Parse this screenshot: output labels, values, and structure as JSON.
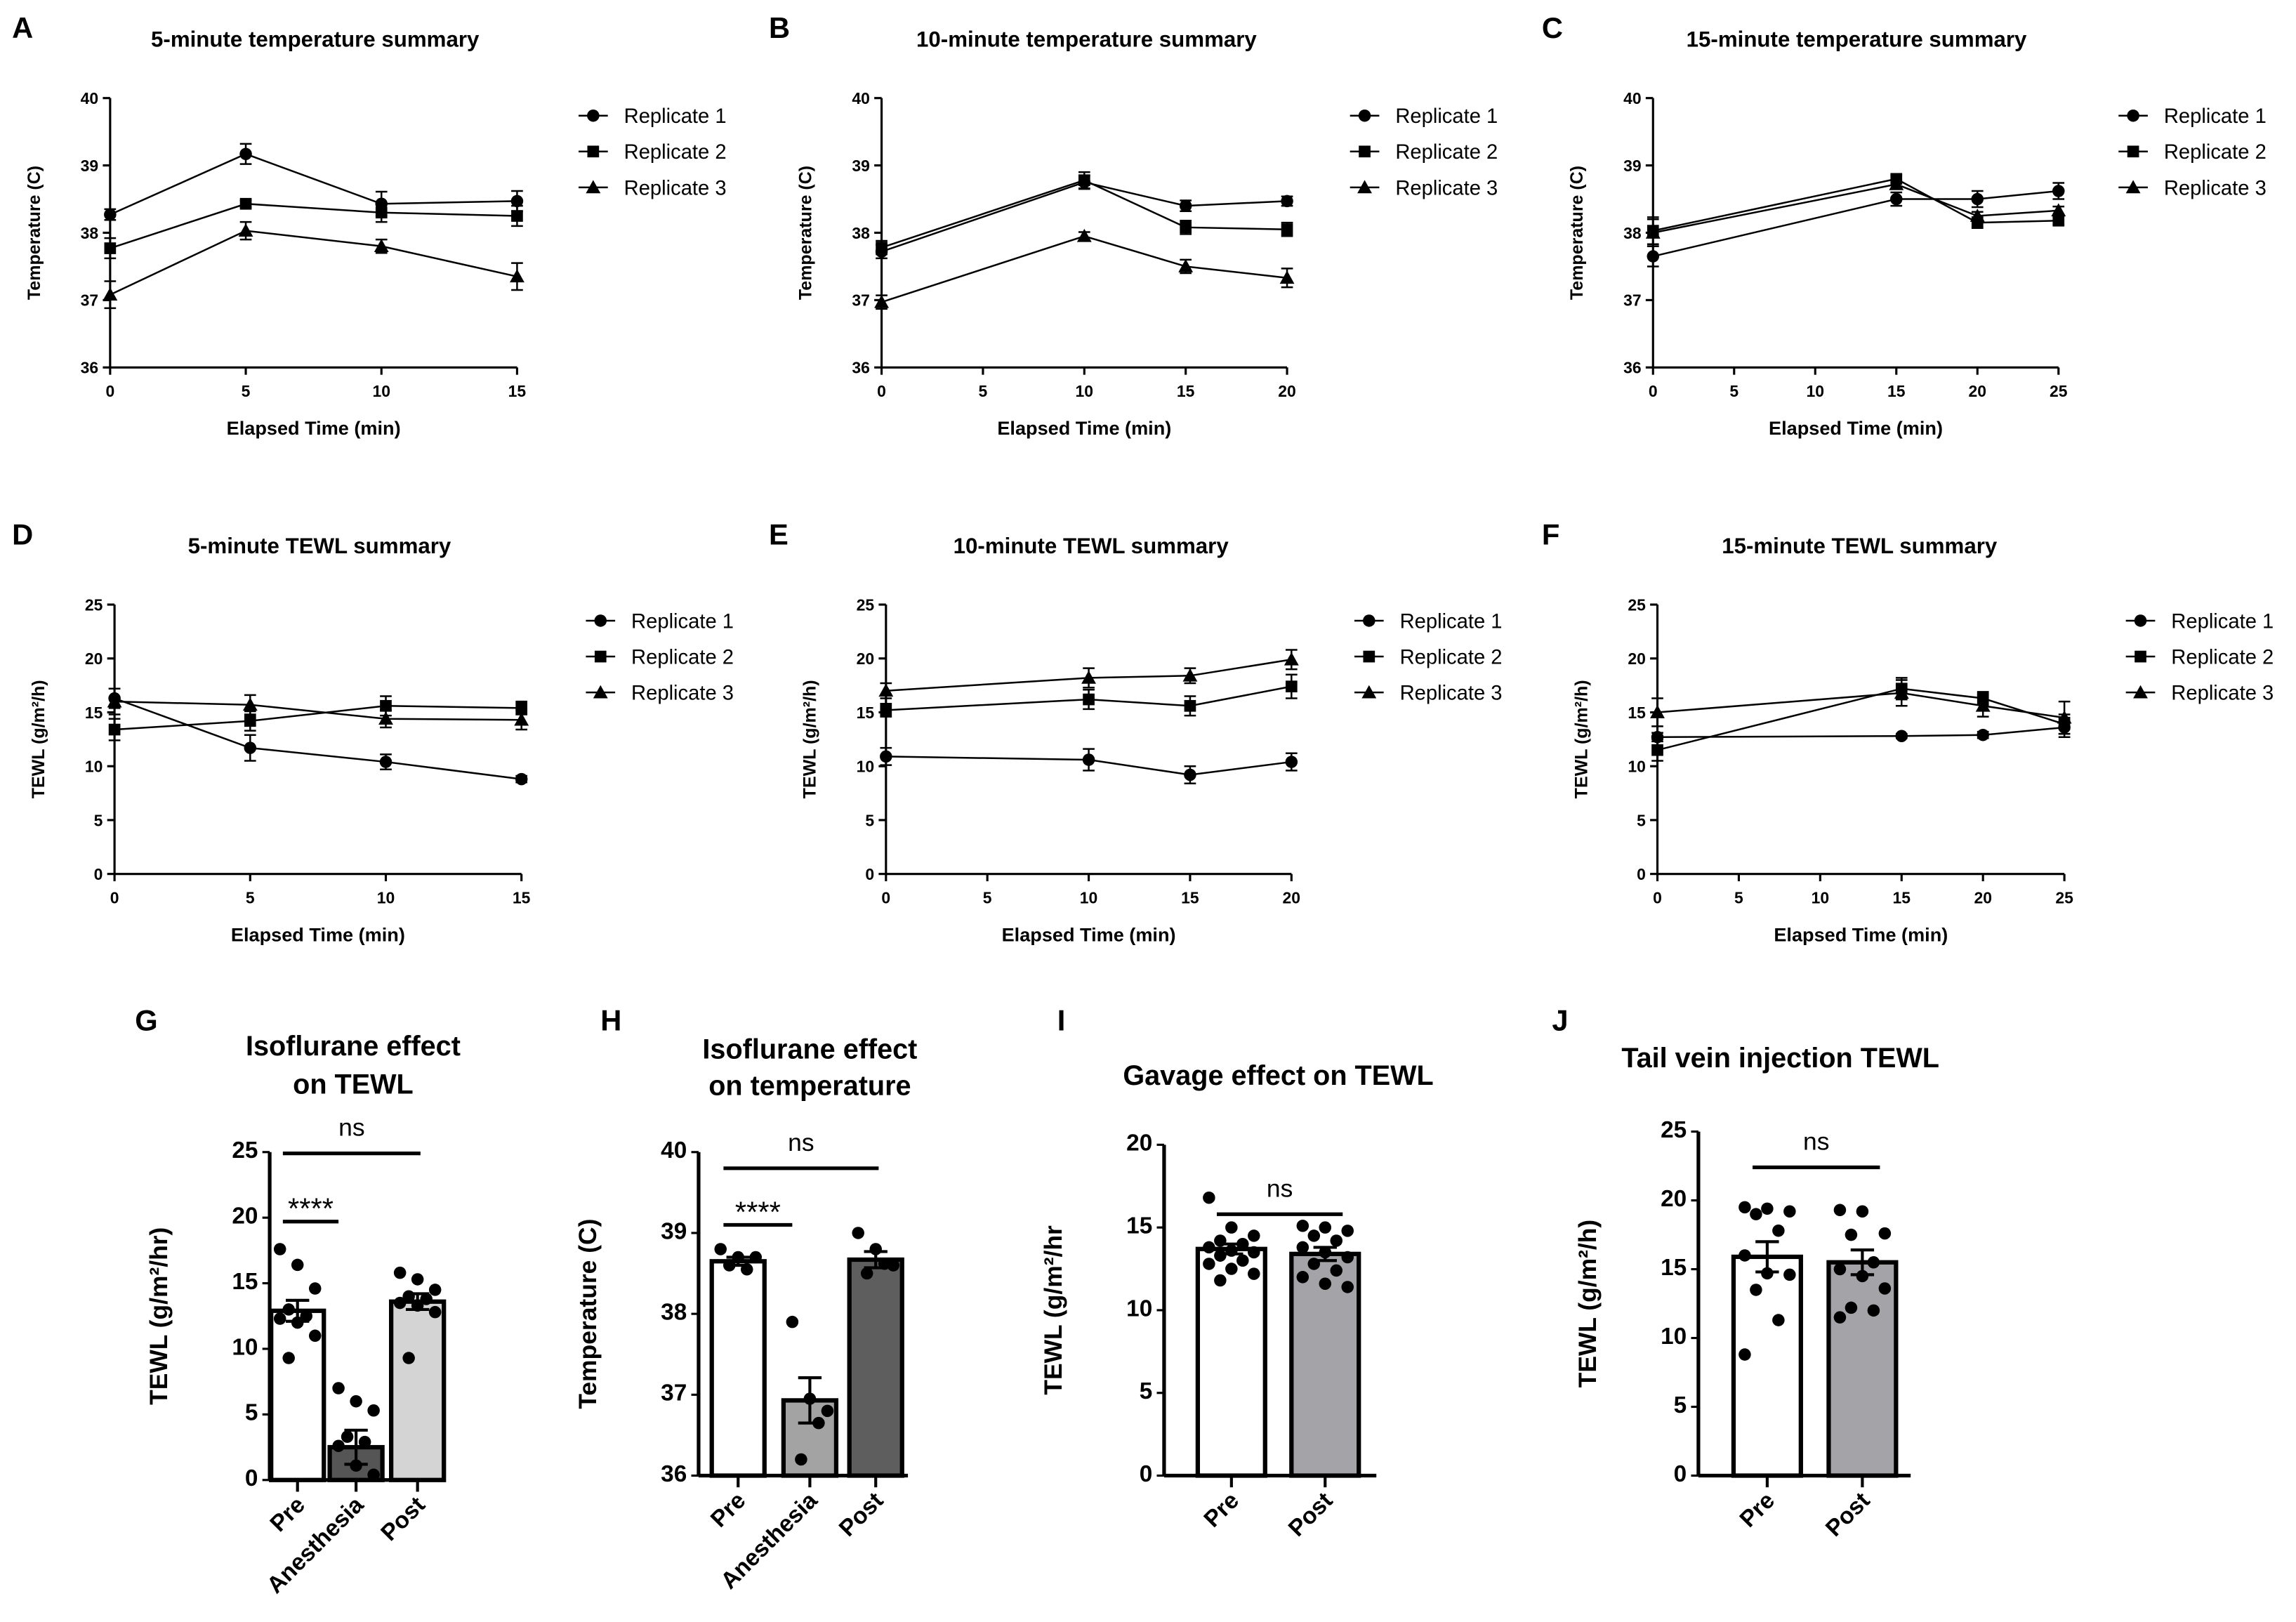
{
  "chart_data": [
    {
      "id": "A",
      "type": "line",
      "panel_label": "A",
      "title": "5-minute temperature summary",
      "xlabel": "Elapsed Time (min)",
      "ylabel": "Temperature (C)",
      "xlim": [
        0,
        15
      ],
      "ylim": [
        36,
        40
      ],
      "xticks": [
        0,
        5,
        10,
        15
      ],
      "yticks": [
        36,
        37,
        38,
        39,
        40
      ],
      "legend": "right",
      "x": [
        0,
        5,
        10,
        15
      ],
      "series": [
        {
          "name": "Replicate 1",
          "marker": "circle",
          "values": [
            38.27,
            39.17,
            38.43,
            38.47
          ],
          "err": [
            0.08,
            0.15,
            0.18,
            0.15
          ]
        },
        {
          "name": "Replicate 2",
          "marker": "square",
          "values": [
            37.77,
            38.43,
            38.3,
            38.25
          ],
          "err": [
            0.15,
            0.05,
            0.14,
            0.15
          ]
        },
        {
          "name": "Replicate 3",
          "marker": "triangle",
          "values": [
            37.08,
            38.03,
            37.8,
            37.35
          ],
          "err": [
            0.2,
            0.13,
            0.1,
            0.2
          ]
        }
      ]
    },
    {
      "id": "B",
      "type": "line",
      "panel_label": "B",
      "title": "10-minute temperature summary",
      "xlabel": "Elapsed Time (min)",
      "ylabel": "Temperature (C)",
      "xlim": [
        0,
        20
      ],
      "ylim": [
        36,
        40
      ],
      "xticks": [
        0,
        5,
        10,
        15,
        20
      ],
      "yticks": [
        36,
        37,
        38,
        39,
        40
      ],
      "legend": "right",
      "x": [
        0,
        10,
        15,
        20
      ],
      "series": [
        {
          "name": "Replicate 1",
          "marker": "circle",
          "values": [
            37.72,
            38.75,
            38.4,
            38.47
          ],
          "err": [
            0.1,
            0.1,
            0.08,
            0.07
          ]
        },
        {
          "name": "Replicate 2",
          "marker": "square",
          "values": [
            37.78,
            38.78,
            38.08,
            38.05
          ],
          "err": [
            0.1,
            0.12,
            0.1,
            0.1
          ]
        },
        {
          "name": "Replicate 3",
          "marker": "triangle",
          "values": [
            36.97,
            37.95,
            37.5,
            37.33
          ],
          "err": [
            0.1,
            0.06,
            0.1,
            0.14
          ]
        }
      ]
    },
    {
      "id": "C",
      "type": "line",
      "panel_label": "C",
      "title": "15-minute temperature summary",
      "xlabel": "Elapsed Time (min)",
      "ylabel": "Temperature (C)",
      "xlim": [
        0,
        25
      ],
      "ylim": [
        36,
        40
      ],
      "xticks": [
        0,
        5,
        10,
        15,
        20,
        25
      ],
      "yticks": [
        36,
        37,
        38,
        39,
        40
      ],
      "legend": "right",
      "x": [
        0,
        15,
        20,
        25
      ],
      "series": [
        {
          "name": "Replicate 1",
          "marker": "circle",
          "values": [
            37.65,
            38.5,
            38.5,
            38.62
          ],
          "err": [
            0.15,
            0.1,
            0.12,
            0.12
          ]
        },
        {
          "name": "Replicate 2",
          "marker": "square",
          "values": [
            38.03,
            38.8,
            38.15,
            38.18
          ],
          "err": [
            0.2,
            0.06,
            0.08,
            0.06
          ]
        },
        {
          "name": "Replicate 3",
          "marker": "triangle",
          "values": [
            38.0,
            38.72,
            38.25,
            38.33
          ],
          "err": [
            0.2,
            0.06,
            0.06,
            0.06
          ]
        }
      ]
    },
    {
      "id": "D",
      "type": "line",
      "panel_label": "D",
      "title": "5-minute TEWL summary",
      "xlabel": "Elapsed Time (min)",
      "ylabel": "TEWL (g/m²/h)",
      "xlim": [
        0,
        15
      ],
      "ylim": [
        0,
        25
      ],
      "xticks": [
        0,
        5,
        10,
        15
      ],
      "yticks": [
        0,
        5,
        10,
        15,
        20,
        25
      ],
      "legend": "right",
      "x": [
        0,
        5,
        10,
        15
      ],
      "series": [
        {
          "name": "Replicate 1",
          "marker": "circle",
          "values": [
            16.3,
            11.7,
            10.4,
            8.8
          ],
          "err": [
            0.9,
            1.2,
            0.7,
            0.3
          ]
        },
        {
          "name": "Replicate 2",
          "marker": "square",
          "values": [
            13.4,
            14.2,
            15.6,
            15.4
          ],
          "err": [
            1.0,
            0.9,
            0.9,
            0.6
          ]
        },
        {
          "name": "Replicate 3",
          "marker": "triangle",
          "values": [
            16.0,
            15.7,
            14.4,
            14.3
          ],
          "err": [
            1.2,
            0.9,
            0.8,
            0.9
          ]
        }
      ]
    },
    {
      "id": "E",
      "type": "line",
      "panel_label": "E",
      "title": "10-minute TEWL summary",
      "xlabel": "Elapsed Time (min)",
      "ylabel": "TEWL (g/m²/h)",
      "xlim": [
        0,
        20
      ],
      "ylim": [
        0,
        25
      ],
      "xticks": [
        0,
        5,
        10,
        15,
        20
      ],
      "yticks": [
        0,
        5,
        10,
        15,
        20,
        25
      ],
      "legend": "right",
      "x": [
        0,
        10,
        15,
        20
      ],
      "series": [
        {
          "name": "Replicate 1",
          "marker": "circle",
          "values": [
            10.9,
            10.6,
            9.2,
            10.4
          ],
          "err": [
            0.8,
            1.0,
            0.8,
            0.8
          ]
        },
        {
          "name": "Replicate 2",
          "marker": "square",
          "values": [
            15.2,
            16.2,
            15.6,
            17.4
          ],
          "err": [
            0.6,
            0.9,
            0.9,
            1.1
          ]
        },
        {
          "name": "Replicate 3",
          "marker": "triangle",
          "values": [
            17.0,
            18.2,
            18.4,
            19.9
          ],
          "err": [
            0.7,
            0.9,
            0.7,
            0.9
          ]
        }
      ]
    },
    {
      "id": "F",
      "type": "line",
      "panel_label": "F",
      "title": "15-minute TEWL summary",
      "xlabel": "Elapsed Time (min)",
      "ylabel": "TEWL (g/m²/h)",
      "xlim": [
        0,
        25
      ],
      "ylim": [
        0,
        25
      ],
      "xticks": [
        0,
        5,
        10,
        15,
        20,
        25
      ],
      "yticks": [
        0,
        5,
        10,
        15,
        20,
        25
      ],
      "legend": "right",
      "x": [
        0,
        15,
        20,
        25
      ],
      "series": [
        {
          "name": "Replicate 1",
          "marker": "circle",
          "values": [
            12.7,
            12.8,
            12.9,
            13.6
          ],
          "err": [
            0.4,
            0.2,
            0.3,
            0.9
          ]
        },
        {
          "name": "Replicate 2",
          "marker": "square",
          "values": [
            11.5,
            17.2,
            16.3,
            13.9
          ],
          "err": [
            1.0,
            1.0,
            0.6,
            0.9
          ]
        },
        {
          "name": "Replicate 3",
          "marker": "triangle",
          "values": [
            15.0,
            16.8,
            15.6,
            14.5
          ],
          "err": [
            1.3,
            1.2,
            1.0,
            1.5
          ]
        }
      ]
    },
    {
      "id": "G",
      "type": "bar",
      "panel_label": "G",
      "title": [
        "Isoflurane effect",
        "on TEWL"
      ],
      "ylabel": "TEWL (g/m²/hr)",
      "ylim": [
        0,
        25
      ],
      "yticks": [
        0,
        5,
        10,
        15,
        20,
        25
      ],
      "categories": [
        "Pre",
        "Anesthesia",
        "Post"
      ],
      "values": [
        12.9,
        2.5,
        13.6
      ],
      "sem": [
        0.8,
        1.3,
        0.6
      ],
      "colors": [
        "#ffffff",
        "#555555",
        "#d4d4d4"
      ],
      "points": [
        [
          17.6,
          16.4,
          14.6,
          13.0,
          12.5,
          12.3,
          12.0,
          11.0,
          9.3
        ],
        [
          7.0,
          6.0,
          5.3,
          3.3,
          2.9,
          2.6,
          1.1,
          0.4
        ],
        [
          15.8,
          15.3,
          14.5,
          14.0,
          13.8,
          13.5,
          13.3,
          12.8,
          9.3
        ]
      ],
      "annotations": [
        {
          "from": 0,
          "to": 1,
          "y": 19.7,
          "text": "****"
        },
        {
          "from": 0,
          "to": 2,
          "y": 24.9,
          "text": "ns"
        }
      ]
    },
    {
      "id": "H",
      "type": "bar",
      "panel_label": "H",
      "title": [
        "Isoflurane effect",
        "on temperature"
      ],
      "ylabel": "Temperature (C)",
      "ylim": [
        36,
        40
      ],
      "yticks": [
        36,
        37,
        38,
        39,
        40
      ],
      "categories": [
        "Pre",
        "Anesthesia",
        "Post"
      ],
      "values": [
        38.65,
        36.93,
        38.67
      ],
      "sem": [
        0.05,
        0.28,
        0.1
      ],
      "colors": [
        "#ffffff",
        "#a3a3a3",
        "#5e5e5e"
      ],
      "points": [
        [
          38.8,
          38.7,
          38.7,
          38.6,
          38.55
        ],
        [
          37.9,
          36.95,
          36.8,
          36.2,
          36.65
        ],
        [
          39.0,
          38.8,
          38.6,
          38.5,
          38.62
        ]
      ],
      "annotations": [
        {
          "from": 0,
          "to": 1,
          "y": 39.1,
          "text": "****"
        },
        {
          "from": 0,
          "to": 2,
          "y": 39.8,
          "text": "ns"
        }
      ]
    },
    {
      "id": "I",
      "type": "bar",
      "panel_label": "I",
      "title": [
        "Gavage effect on TEWL"
      ],
      "ylabel": "TEWL (g/m²/hr",
      "ylim": [
        0,
        20
      ],
      "yticks": [
        0,
        5,
        10,
        15,
        20
      ],
      "categories": [
        "Pre",
        "Post"
      ],
      "values": [
        13.7,
        13.4
      ],
      "sem": [
        0.3,
        0.4
      ],
      "colors": [
        "#ffffff",
        "#a3a3a8"
      ],
      "points": [
        [
          16.8,
          15.0,
          14.5,
          14.2,
          14.0,
          13.8,
          13.6,
          13.5,
          13.3,
          13.0,
          12.8,
          12.5,
          12.2,
          11.8
        ],
        [
          15.1,
          15.0,
          14.8,
          14.5,
          14.2,
          13.8,
          13.5,
          13.2,
          12.8,
          12.4,
          12.0,
          11.6,
          11.4
        ]
      ],
      "annotations": [
        {
          "from": 0,
          "to": 1,
          "y": 15.8,
          "text": "ns"
        }
      ]
    },
    {
      "id": "J",
      "type": "bar",
      "panel_label": "J",
      "title": [
        "Tail vein injection TEWL"
      ],
      "ylabel": "TEWL (g/m²/h)",
      "ylim": [
        0,
        25
      ],
      "yticks": [
        0,
        5,
        10,
        15,
        20,
        25
      ],
      "categories": [
        "Pre",
        "Post"
      ],
      "values": [
        15.9,
        15.5
      ],
      "sem": [
        1.1,
        0.9
      ],
      "colors": [
        "#ffffff",
        "#a3a3a8"
      ],
      "points": [
        [
          19.5,
          19.4,
          19.2,
          19.0,
          17.8,
          16.0,
          14.7,
          14.6,
          13.5,
          11.3,
          8.8
        ],
        [
          19.3,
          19.2,
          17.6,
          17.5,
          15.5,
          15.0,
          14.5,
          13.6,
          12.2,
          12.0,
          11.5
        ]
      ],
      "annotations": [
        {
          "from": 0,
          "to": 1,
          "y": 22.4,
          "text": "ns"
        }
      ]
    }
  ]
}
